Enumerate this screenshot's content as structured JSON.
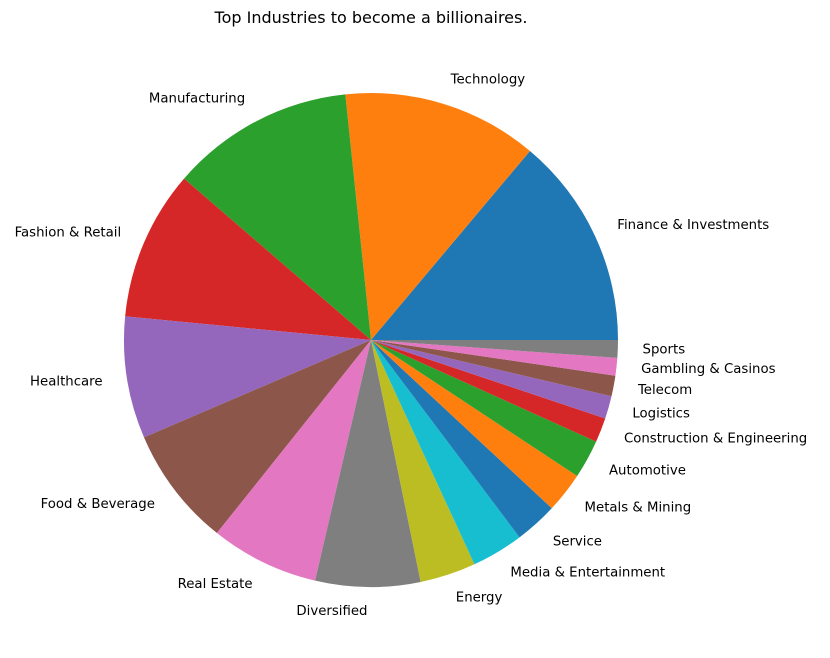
{
  "chart_data": {
    "type": "pie",
    "title": "Top Industries to become a billionaires.",
    "start_angle_deg": 0,
    "direction": "counterclockwise",
    "slices": [
      {
        "label": "Finance & Investments",
        "value": 372,
        "color": "#1f77b4"
      },
      {
        "label": "Technology",
        "value": 343,
        "color": "#ff7f0e"
      },
      {
        "label": "Manufacturing",
        "value": 322,
        "color": "#2ca02c"
      },
      {
        "label": "Fashion & Retail",
        "value": 263,
        "color": "#d62728"
      },
      {
        "label": "Healthcare",
        "value": 214,
        "color": "#9467bd"
      },
      {
        "label": "Food & Beverage",
        "value": 210,
        "color": "#8c564b"
      },
      {
        "label": "Real Estate",
        "value": 190,
        "color": "#e377c2"
      },
      {
        "label": "Diversified",
        "value": 184,
        "color": "#7f7f7f"
      },
      {
        "label": "Energy",
        "value": 98,
        "color": "#bcbd22"
      },
      {
        "label": "Media & Entertainment",
        "value": 91,
        "color": "#17becf"
      },
      {
        "label": "Service",
        "value": 75,
        "color": "#1f77b4"
      },
      {
        "label": "Metals & Mining",
        "value": 71,
        "color": "#ff7f0e"
      },
      {
        "label": "Automotive",
        "value": 68,
        "color": "#2ca02c"
      },
      {
        "label": "Construction & Engineering",
        "value": 43,
        "color": "#d62728"
      },
      {
        "label": "Logistics",
        "value": 40,
        "color": "#9467bd"
      },
      {
        "label": "Telecom",
        "value": 36,
        "color": "#8c564b"
      },
      {
        "label": "Gambling & Casinos",
        "value": 31,
        "color": "#e377c2"
      },
      {
        "label": "Sports",
        "value": 31,
        "color": "#7f7f7f"
      }
    ]
  }
}
